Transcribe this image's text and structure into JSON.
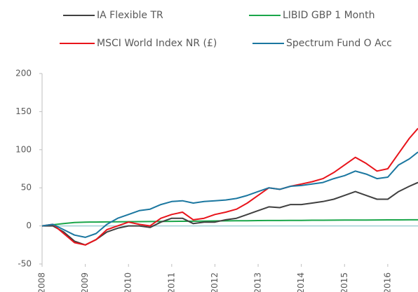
{
  "chart_data": {
    "type": "line",
    "x": [
      2008,
      2008.25,
      2008.5,
      2008.75,
      2009,
      2009.25,
      2009.5,
      2009.75,
      2010,
      2010.25,
      2010.5,
      2010.75,
      2011,
      2011.25,
      2011.5,
      2011.75,
      2012,
      2012.25,
      2012.5,
      2012.75,
      2013,
      2013.25,
      2013.5,
      2013.75,
      2014,
      2014.25,
      2014.5,
      2014.75,
      2015,
      2015.25,
      2015.5,
      2015.75,
      2016,
      2016.25,
      2016.5,
      2016.7
    ],
    "series": [
      {
        "name": "IA Flexible TR",
        "color": "#404040",
        "values": [
          0,
          0,
          -8,
          -20,
          -25,
          -18,
          -8,
          -3,
          0,
          0,
          -2,
          5,
          10,
          10,
          3,
          5,
          5,
          8,
          10,
          15,
          20,
          25,
          24,
          28,
          28,
          30,
          32,
          35,
          40,
          45,
          40,
          35,
          35,
          45,
          52,
          57
        ]
      },
      {
        "name": "LIBID GBP 1 Month",
        "color": "#1aa64a",
        "values": [
          0,
          1.5,
          3,
          4.5,
          5,
          5.1,
          5.2,
          5.3,
          5.5,
          5.6,
          5.7,
          5.8,
          6,
          6.1,
          6.2,
          6.3,
          6.5,
          6.6,
          6.7,
          6.8,
          7,
          7.1,
          7.1,
          7.2,
          7.3,
          7.4,
          7.4,
          7.5,
          7.6,
          7.7,
          7.7,
          7.8,
          7.9,
          7.9,
          8,
          8
        ]
      },
      {
        "name": "MSCI World Index NR (£)",
        "color": "#e8141b",
        "values": [
          0,
          2,
          -10,
          -22,
          -25,
          -18,
          -5,
          0,
          5,
          2,
          0,
          10,
          15,
          18,
          8,
          10,
          15,
          18,
          22,
          30,
          40,
          50,
          48,
          52,
          55,
          58,
          62,
          70,
          80,
          90,
          82,
          72,
          75,
          95,
          115,
          128
        ]
      },
      {
        "name": "Spectrum Fund O Acc",
        "color": "#1b77a0",
        "values": [
          0,
          2,
          -5,
          -12,
          -15,
          -10,
          2,
          10,
          15,
          20,
          22,
          28,
          32,
          33,
          30,
          32,
          33,
          34,
          36,
          40,
          45,
          50,
          48,
          52,
          53,
          55,
          57,
          62,
          66,
          72,
          68,
          62,
          64,
          80,
          88,
          97
        ]
      }
    ],
    "xlim": [
      2008,
      2016.7
    ],
    "xticks": [
      2008,
      2009,
      2010,
      2011,
      2012,
      2013,
      2014,
      2015,
      2016
    ],
    "ylim": [
      -50,
      200
    ],
    "yticks": [
      -50,
      0,
      50,
      100,
      150,
      200
    ]
  }
}
